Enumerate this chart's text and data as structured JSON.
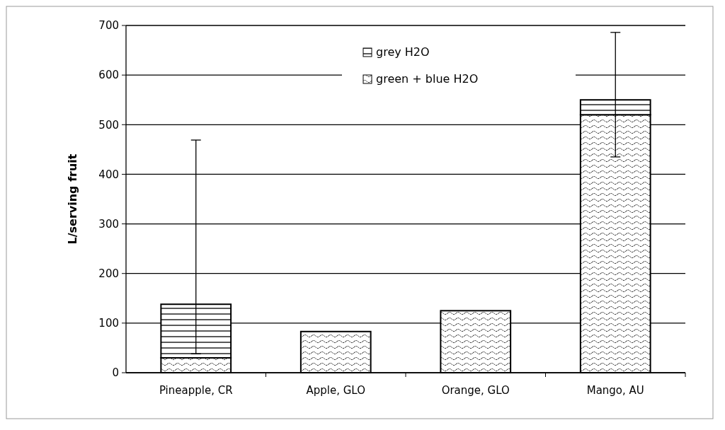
{
  "chart_data": {
    "type": "bar",
    "ylabel": "L/serving fruit",
    "categories": [
      "Pineapple, CR",
      "Apple, GLO",
      "Orange, GLO",
      "Mango, AU"
    ],
    "stacked": true,
    "series": [
      {
        "name": "green + blue H2O",
        "color": "#000000",
        "values": [
          30,
          83,
          125,
          520
        ]
      },
      {
        "name": "grey H2O",
        "color": "#000000",
        "values": [
          108,
          0,
          0,
          30
        ],
        "errors": [
          [
            38,
            469
          ],
          null,
          null,
          [
            435,
            686
          ]
        ]
      }
    ],
    "ylim": [
      0,
      700
    ],
    "yticks": [
      0,
      100,
      200,
      300,
      400,
      500,
      600,
      700
    ],
    "grid": "y",
    "legend": "top"
  }
}
